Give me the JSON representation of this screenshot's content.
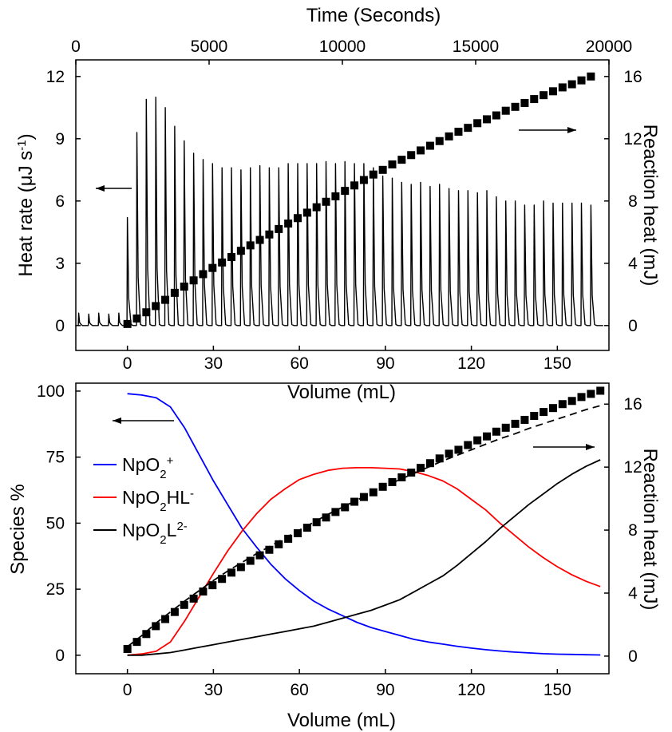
{
  "chart_data": [
    {
      "type": "line",
      "panel": "top",
      "xlabel": "Volume (mL)",
      "x_top_label": "Time (Seconds)",
      "ylabel_left": "Heat rate (μJ s⁻¹)",
      "ylabel_right": "Reaction heat (mJ)",
      "xlim": [
        -18,
        168
      ],
      "x_ticks": [
        0,
        30,
        60,
        90,
        120,
        150
      ],
      "x_top_lim": [
        0,
        20000
      ],
      "x_top_ticks": [
        0,
        5000,
        10000,
        15000,
        20000
      ],
      "ylim_left": [
        -1.2,
        12.8
      ],
      "y_ticks_left": [
        0,
        3,
        6,
        9,
        12
      ],
      "ylim_right": [
        -1.6,
        17.067
      ],
      "y_ticks_right": [
        0,
        4,
        8,
        12,
        16
      ],
      "series": [
        {
          "axis": "left",
          "style": "line",
          "color": "#000000",
          "pre_injection_x": [
            -17,
            -13.5,
            -10,
            -6.5,
            -3
          ],
          "pre_injection_peaks": [
            0.6,
            0.55,
            0.6,
            0.55,
            0.6
          ],
          "injection_x": [
            0,
            3.3,
            6.6,
            9.9,
            13.2,
            16.5,
            19.8,
            23.1,
            26.4,
            29.7,
            33,
            36.3,
            39.6,
            42.9,
            46.2,
            49.5,
            52.8,
            56.1,
            59.4,
            62.7,
            66,
            69.3,
            72.6,
            75.9,
            79.2,
            82.5,
            85.8,
            89.1,
            92.4,
            95.7,
            99,
            102.3,
            105.6,
            108.9,
            112.2,
            115.5,
            118.8,
            122.1,
            125.4,
            128.7,
            132,
            135.3,
            138.6,
            141.9,
            145.2,
            148.5,
            151.8,
            155.1,
            158.4,
            161.7
          ],
          "injection_peaks": [
            5.2,
            9.3,
            10.9,
            11.0,
            10.5,
            9.6,
            8.9,
            8.3,
            8.0,
            7.8,
            7.6,
            7.6,
            7.5,
            7.6,
            7.7,
            7.6,
            7.6,
            7.8,
            7.8,
            7.8,
            7.8,
            7.9,
            7.8,
            7.9,
            7.8,
            7.8,
            7.6,
            7.2,
            7.1,
            6.9,
            6.8,
            6.9,
            6.7,
            6.8,
            6.6,
            6.5,
            6.5,
            6.4,
            6.5,
            6.2,
            6.0,
            6.0,
            5.8,
            5.8,
            6.0,
            5.9,
            5.9,
            5.9,
            5.9,
            5.8
          ]
        },
        {
          "axis": "right",
          "style": "square-markers",
          "color": "#000000",
          "x": [
            0,
            3.3,
            6.6,
            9.9,
            13.2,
            16.5,
            19.8,
            23.1,
            26.4,
            29.7,
            33,
            36.3,
            39.6,
            42.9,
            46.2,
            49.5,
            52.8,
            56.1,
            59.4,
            62.7,
            66,
            69.3,
            72.6,
            75.9,
            79.2,
            82.5,
            85.8,
            89.1,
            92.4,
            95.7,
            99,
            102.3,
            105.6,
            108.9,
            112.2,
            115.5,
            118.8,
            122.1,
            125.4,
            128.7,
            132,
            135.3,
            138.6,
            141.9,
            145.2,
            148.5,
            151.8,
            155.1,
            158.4,
            161.7
          ],
          "values": [
            0.1,
            0.45,
            0.85,
            1.25,
            1.65,
            2.1,
            2.5,
            2.9,
            3.3,
            3.7,
            4.05,
            4.4,
            4.8,
            5.15,
            5.5,
            5.85,
            6.2,
            6.55,
            6.9,
            7.25,
            7.6,
            7.95,
            8.3,
            8.65,
            9.0,
            9.35,
            9.7,
            10.0,
            10.35,
            10.65,
            10.95,
            11.25,
            11.55,
            11.85,
            12.15,
            12.45,
            12.7,
            13.0,
            13.25,
            13.5,
            13.8,
            14.05,
            14.3,
            14.55,
            14.8,
            15.05,
            15.3,
            15.5,
            15.75,
            16.0
          ]
        }
      ],
      "arrows": [
        {
          "direction": "left",
          "axis": "left"
        },
        {
          "direction": "right",
          "axis": "right"
        }
      ]
    },
    {
      "type": "line",
      "panel": "bottom",
      "xlabel": "Volume (mL)",
      "ylabel_left": "Species %",
      "ylabel_right": "Reaction heat (mJ)",
      "xlim": [
        -18,
        168
      ],
      "x_ticks": [
        0,
        30,
        60,
        90,
        120,
        150
      ],
      "ylim_left": [
        -7,
        103
      ],
      "y_ticks_left": [
        0,
        25,
        50,
        75,
        100
      ],
      "ylim_right": [
        -1.12,
        17.33
      ],
      "y_ticks_right": [
        0,
        4,
        8,
        12,
        16
      ],
      "legend_position": "left",
      "x": [
        0,
        5,
        10,
        15,
        20,
        25,
        30,
        35,
        40,
        45,
        50,
        55,
        60,
        65,
        70,
        75,
        80,
        85,
        90,
        95,
        100,
        105,
        110,
        115,
        120,
        125,
        130,
        135,
        140,
        145,
        150,
        155,
        160,
        165
      ],
      "series": [
        {
          "name": "NpO2+",
          "legend_base": "NpO",
          "legend_sub": "2",
          "legend_rest": "",
          "legend_sup": "+",
          "axis": "left",
          "style": "line",
          "color": "#0000ff",
          "values": [
            99,
            98.5,
            97.5,
            94,
            86,
            76,
            66,
            57,
            48,
            41,
            34.5,
            29,
            24.5,
            20.5,
            17.5,
            15,
            12.5,
            10.5,
            9,
            7.5,
            6,
            5,
            4.2,
            3.4,
            2.7,
            2.1,
            1.6,
            1.2,
            0.9,
            0.6,
            0.4,
            0.3,
            0.2,
            0.1
          ]
        },
        {
          "name": "NpO2HL-",
          "legend_base": "NpO",
          "legend_sub": "2",
          "legend_rest": "HL",
          "legend_sup": "-",
          "axis": "left",
          "style": "line",
          "color": "#ff0000",
          "values": [
            0,
            0.5,
            1.5,
            5,
            13,
            22,
            31,
            39.5,
            47,
            53.5,
            59,
            63,
            66.5,
            68.5,
            70,
            70.8,
            71,
            71,
            70.8,
            70.5,
            69.5,
            68,
            66,
            63,
            59,
            55,
            50,
            45.5,
            41,
            37,
            33.5,
            30.5,
            28,
            26
          ]
        },
        {
          "name": "NpO2L2-",
          "legend_base": "NpO",
          "legend_sub": "2",
          "legend_rest": "L",
          "legend_sup": "2-",
          "axis": "left",
          "style": "line",
          "color": "#000000",
          "values": [
            0,
            0,
            0.5,
            1,
            2,
            3,
            4,
            5,
            6,
            7,
            8,
            9,
            10,
            11,
            12.5,
            14,
            15.5,
            17,
            19,
            21,
            24,
            27,
            30,
            34,
            38.5,
            43,
            48,
            52.5,
            57,
            61,
            65,
            68.5,
            71.5,
            74
          ]
        },
        {
          "axis": "right",
          "style": "dashed-line",
          "color": "#000000",
          "values": [
            0.6,
            1.3,
            2.1,
            2.8,
            3.5,
            4.15,
            4.8,
            5.4,
            5.95,
            6.5,
            7.0,
            7.5,
            8.0,
            8.5,
            9.0,
            9.45,
            9.9,
            10.35,
            10.8,
            11.2,
            11.6,
            12.0,
            12.4,
            12.75,
            13.1,
            13.45,
            13.8,
            14.1,
            14.45,
            14.75,
            15.05,
            15.35,
            15.65,
            15.9
          ]
        }
      ],
      "markers": {
        "axis": "right",
        "style": "square-markers",
        "color": "#000000",
        "x": [
          0,
          3.3,
          6.6,
          9.9,
          13.2,
          16.5,
          19.8,
          23.1,
          26.4,
          29.7,
          33,
          36.3,
          39.6,
          42.9,
          46.2,
          49.5,
          52.8,
          56.1,
          59.4,
          62.7,
          66,
          69.3,
          72.6,
          75.9,
          79.2,
          82.5,
          85.8,
          89.1,
          92.4,
          95.7,
          99,
          102.3,
          105.6,
          108.9,
          112.2,
          115.5,
          118.8,
          122.1,
          125.4,
          128.7,
          132,
          135.3,
          138.6,
          141.9,
          145.2,
          148.5,
          151.8,
          155.1,
          158.4,
          161.7,
          165
        ],
        "values": [
          0.45,
          0.9,
          1.4,
          1.9,
          2.35,
          2.8,
          3.25,
          3.65,
          4.1,
          4.5,
          4.9,
          5.3,
          5.65,
          6.05,
          6.4,
          6.75,
          7.1,
          7.45,
          7.8,
          8.15,
          8.5,
          8.8,
          9.15,
          9.45,
          9.8,
          10.1,
          10.4,
          10.75,
          11.05,
          11.35,
          11.65,
          11.95,
          12.25,
          12.55,
          12.85,
          13.1,
          13.4,
          13.7,
          13.95,
          14.25,
          14.5,
          14.75,
          15.0,
          15.25,
          15.5,
          15.75,
          16.0,
          16.2,
          16.45,
          16.65,
          16.85
        ]
      },
      "arrows": [
        {
          "direction": "left",
          "axis": "left"
        },
        {
          "direction": "right",
          "axis": "right"
        }
      ]
    }
  ]
}
